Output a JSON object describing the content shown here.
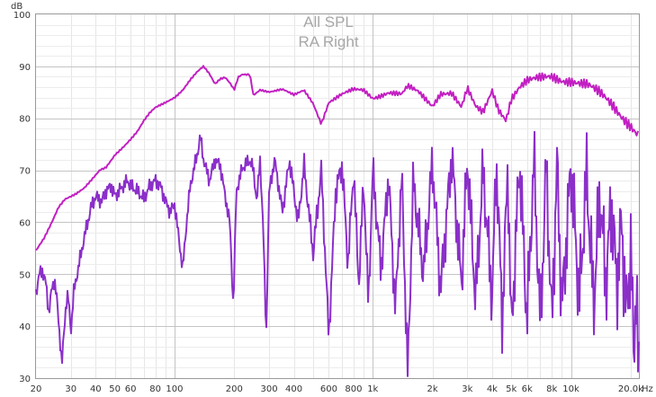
{
  "chart_data": {
    "type": "line",
    "title": "All SPL",
    "subtitle": "RA Right",
    "x_unit": "Hz",
    "y_unit": "dB",
    "x_scale": "log",
    "xlim": [
      20,
      22000
    ],
    "ylim": [
      30,
      100
    ],
    "grid": true,
    "x_tick_labels": [
      {
        "v": 20,
        "t": "20"
      },
      {
        "v": 30,
        "t": "30"
      },
      {
        "v": 40,
        "t": "40"
      },
      {
        "v": 50,
        "t": "50"
      },
      {
        "v": 60,
        "t": "60"
      },
      {
        "v": 80,
        "t": "80"
      },
      {
        "v": 100,
        "t": "100"
      },
      {
        "v": 200,
        "t": "200"
      },
      {
        "v": 300,
        "t": "300"
      },
      {
        "v": 400,
        "t": "400"
      },
      {
        "v": 600,
        "t": "600"
      },
      {
        "v": 800,
        "t": "800"
      },
      {
        "v": 1000,
        "t": "1k"
      },
      {
        "v": 2000,
        "t": "2k"
      },
      {
        "v": 3000,
        "t": "3k"
      },
      {
        "v": 4000,
        "t": "4k"
      },
      {
        "v": 5000,
        "t": "5k"
      },
      {
        "v": 6000,
        "t": "6k"
      },
      {
        "v": 8000,
        "t": "8k"
      },
      {
        "v": 10000,
        "t": "10k"
      },
      {
        "v": 20000,
        "t": "20.0k"
      }
    ],
    "y_tick_labels": [
      "30",
      "40",
      "50",
      "60",
      "70",
      "80",
      "90",
      "100"
    ],
    "series": [
      {
        "color": "#c21fc2",
        "points": [
          [
            20,
            54.5
          ],
          [
            22,
            57
          ],
          [
            24,
            60
          ],
          [
            26,
            63
          ],
          [
            28,
            64.5
          ],
          [
            30,
            65
          ],
          [
            32,
            65.5
          ],
          [
            35,
            66.5
          ],
          [
            38,
            68
          ],
          [
            40,
            69
          ],
          [
            42,
            70
          ],
          [
            45,
            70.5
          ],
          [
            48,
            72
          ],
          [
            50,
            73
          ],
          [
            55,
            74.5
          ],
          [
            60,
            76
          ],
          [
            65,
            77.5
          ],
          [
            70,
            79.5
          ],
          [
            75,
            81
          ],
          [
            80,
            82
          ],
          [
            90,
            83
          ],
          [
            100,
            84
          ],
          [
            110,
            85.5
          ],
          [
            120,
            87.5
          ],
          [
            130,
            89
          ],
          [
            140,
            90
          ],
          [
            150,
            88.5
          ],
          [
            160,
            86.5
          ],
          [
            170,
            87.5
          ],
          [
            180,
            87.8
          ],
          [
            190,
            86.8
          ],
          [
            200,
            85.5
          ],
          [
            210,
            88
          ],
          [
            220,
            88.5
          ],
          [
            240,
            88.5
          ],
          [
            250,
            84.5
          ],
          [
            270,
            85.5
          ],
          [
            300,
            85
          ],
          [
            350,
            85.5
          ],
          [
            400,
            84.5
          ],
          [
            450,
            85.5
          ],
          [
            500,
            83
          ],
          [
            550,
            79
          ],
          [
            600,
            83
          ],
          [
            700,
            84.5
          ],
          [
            800,
            85.5
          ],
          [
            900,
            85.5
          ],
          [
            1000,
            84
          ],
          [
            1100,
            84.5
          ],
          [
            1200,
            85
          ],
          [
            1400,
            84.5
          ],
          [
            1500,
            86
          ],
          [
            1700,
            85
          ],
          [
            2000,
            82.5
          ],
          [
            2200,
            85
          ],
          [
            2500,
            85
          ],
          [
            2800,
            82
          ],
          [
            3000,
            85.5
          ],
          [
            3300,
            82
          ],
          [
            3600,
            81
          ],
          [
            4000,
            85.5
          ],
          [
            4300,
            82
          ],
          [
            4700,
            80
          ],
          [
            5000,
            84
          ],
          [
            5500,
            86
          ],
          [
            6000,
            87
          ],
          [
            7000,
            87.5
          ],
          [
            8000,
            88
          ],
          [
            9000,
            87.5
          ],
          [
            10000,
            87.5
          ],
          [
            12000,
            86.5
          ],
          [
            14000,
            84.5
          ],
          [
            16000,
            82.5
          ],
          [
            18000,
            80.5
          ],
          [
            20000,
            79
          ],
          [
            21500,
            77.5
          ]
        ]
      },
      {
        "color": "#8b2fc9",
        "points": [
          [
            20,
            46.5
          ],
          [
            20.8,
            50
          ],
          [
            21.5,
            50.8
          ],
          [
            22.5,
            48
          ],
          [
            23.2,
            42.5
          ],
          [
            24,
            47
          ],
          [
            24.8,
            49
          ],
          [
            25.5,
            45
          ],
          [
            26.5,
            37
          ],
          [
            27,
            32.5
          ],
          [
            27.6,
            38
          ],
          [
            28.3,
            44
          ],
          [
            29,
            46
          ],
          [
            29.6,
            42
          ],
          [
            30,
            39
          ],
          [
            31,
            46.5
          ],
          [
            33,
            52
          ],
          [
            35,
            57
          ],
          [
            38,
            63
          ],
          [
            40,
            65
          ],
          [
            43,
            64
          ],
          [
            45,
            66
          ],
          [
            48,
            67
          ],
          [
            50,
            65
          ],
          [
            55,
            67
          ],
          [
            58,
            68
          ],
          [
            60,
            67
          ],
          [
            65,
            66
          ],
          [
            70,
            64.5
          ],
          [
            75,
            67
          ],
          [
            80,
            68
          ],
          [
            85,
            67
          ],
          [
            90,
            64
          ],
          [
            95,
            62
          ],
          [
            100,
            63.5
          ],
          [
            105,
            57
          ],
          [
            110,
            51
          ],
          [
            115,
            60
          ],
          [
            120,
            67
          ],
          [
            130,
            73
          ],
          [
            135,
            76.5
          ],
          [
            140,
            72
          ],
          [
            150,
            68
          ],
          [
            160,
            72
          ],
          [
            170,
            71
          ],
          [
            180,
            65
          ],
          [
            190,
            60
          ],
          [
            198,
            43.5
          ],
          [
            205,
            66
          ],
          [
            220,
            70.5
          ],
          [
            240,
            72
          ],
          [
            250,
            70
          ],
          [
            260,
            64
          ],
          [
            270,
            72
          ],
          [
            280,
            59
          ],
          [
            290,
            38
          ],
          [
            300,
            66
          ],
          [
            320,
            72
          ],
          [
            350,
            62
          ],
          [
            380,
            72
          ],
          [
            420,
            60
          ],
          [
            450,
            71
          ],
          [
            500,
            54
          ],
          [
            550,
            70
          ],
          [
            600,
            38
          ],
          [
            650,
            66
          ],
          [
            700,
            71
          ],
          [
            750,
            52
          ],
          [
            800,
            70
          ],
          [
            850,
            48
          ],
          [
            900,
            68
          ],
          [
            950,
            44
          ],
          [
            1000,
            70
          ],
          [
            1100,
            51
          ],
          [
            1200,
            69
          ],
          [
            1300,
            43
          ],
          [
            1400,
            69
          ],
          [
            1500,
            30.5
          ],
          [
            1600,
            68
          ],
          [
            1800,
            50
          ],
          [
            2000,
            71.5
          ],
          [
            2200,
            47
          ],
          [
            2500,
            73
          ],
          [
            2800,
            48
          ],
          [
            3000,
            72
          ],
          [
            3300,
            45
          ],
          [
            3600,
            70
          ],
          [
            4000,
            45
          ],
          [
            4200,
            72
          ],
          [
            4500,
            41
          ],
          [
            4800,
            71
          ],
          [
            5000,
            38
          ],
          [
            5500,
            72
          ],
          [
            6000,
            41
          ],
          [
            6500,
            72
          ],
          [
            7000,
            40
          ],
          [
            7500,
            71
          ],
          [
            8000,
            40
          ],
          [
            8500,
            71
          ],
          [
            9000,
            43
          ],
          [
            10000,
            71
          ],
          [
            11000,
            45
          ],
          [
            12000,
            69
          ],
          [
            13000,
            44
          ],
          [
            14000,
            66
          ],
          [
            15000,
            48
          ],
          [
            16000,
            64
          ],
          [
            17000,
            48
          ],
          [
            18000,
            60
          ],
          [
            19000,
            42
          ],
          [
            20000,
            55
          ],
          [
            20700,
            35
          ],
          [
            21300,
            48
          ],
          [
            21800,
            31.5
          ]
        ]
      }
    ]
  }
}
